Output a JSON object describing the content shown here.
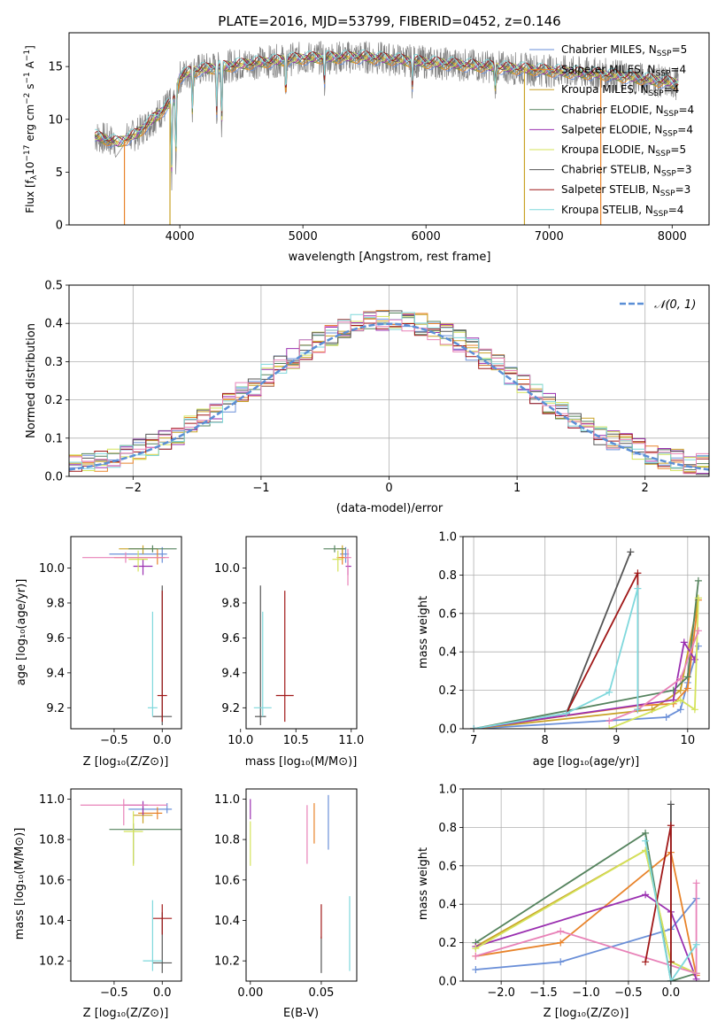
{
  "title": "PLATE=2016, MJD=53799, FIBERID=0452, z=0.146",
  "colors": {
    "chabrier_miles": "#6a8fd8",
    "salpeter_miles": "#e8832a",
    "kroupa_miles": "#c9a227",
    "chabrier_elodie": "#55835e",
    "salpeter_elodie": "#9a2fb0",
    "kroupa_elodie": "#d4e35a",
    "chabrier_stelib": "#555555",
    "salpeter_stelib": "#a01818",
    "kroupa_stelib": "#7fd8dc",
    "pink": "#e882b8",
    "normal_curve": "#5b8fd6"
  },
  "legend_spectrum": [
    {
      "label": "Chabrier MILES, N",
      "sub": "SSP",
      "suffix": "=5",
      "color": "#6a8fd8"
    },
    {
      "label": "Salpeter MILES, N",
      "sub": "SSP",
      "suffix": "=4",
      "color": "#e8832a"
    },
    {
      "label": "Kroupa MILES, N",
      "sub": "SSP",
      "suffix": "=4",
      "color": "#c9a227"
    },
    {
      "label": "Chabrier ELODIE, N",
      "sub": "SSP",
      "suffix": "=4",
      "color": "#55835e"
    },
    {
      "label": "Salpeter ELODIE, N",
      "sub": "SSP",
      "suffix": "=4",
      "color": "#9a2fb0"
    },
    {
      "label": "Kroupa ELODIE, N",
      "sub": "SSP",
      "suffix": "=5",
      "color": "#d4e35a"
    },
    {
      "label": "Chabrier STELIB, N",
      "sub": "SSP",
      "suffix": "=3",
      "color": "#555555"
    },
    {
      "label": "Salpeter STELIB, N",
      "sub": "SSP",
      "suffix": "=3",
      "color": "#a01818"
    },
    {
      "label": "Kroupa STELIB, N",
      "sub": "SSP",
      "suffix": "=4",
      "color": "#7fd8dc"
    }
  ],
  "chart_data": [
    {
      "id": "spectrum",
      "type": "line",
      "xlabel": "wavelength [Angstrom, rest frame]",
      "ylabel": "Flux [fλ10⁻¹⁷ erg cm⁻² s⁻¹ A⁻¹]",
      "xlim": [
        3100,
        8300
      ],
      "ylim": [
        0,
        18.2
      ],
      "xticks": [
        4000,
        5000,
        6000,
        7000,
        8000
      ],
      "yticks": [
        0,
        5,
        10,
        15
      ],
      "continuum": {
        "x": [
          3310,
          3500,
          3650,
          3800,
          3950,
          4000,
          4100,
          4300,
          4500,
          5000,
          5500,
          6000,
          6500,
          7000,
          7500,
          8050
        ],
        "y": [
          8.4,
          7.8,
          8.6,
          10.2,
          11.8,
          14.0,
          14.6,
          14.9,
          15.2,
          15.8,
          15.9,
          15.4,
          15.0,
          14.6,
          14.2,
          13.4
        ]
      },
      "absorption": [
        {
          "x": 3934,
          "depth": 7.0
        },
        {
          "x": 3968,
          "depth": 6.5
        },
        {
          "x": 4102,
          "depth": 4.0
        },
        {
          "x": 4300,
          "depth": 4.5
        },
        {
          "x": 4340,
          "depth": 6.0
        },
        {
          "x": 4861,
          "depth": 3.5
        },
        {
          "x": 5175,
          "depth": 2.5
        },
        {
          "x": 5890,
          "depth": 2.5
        },
        {
          "x": 6563,
          "depth": 2.0
        }
      ],
      "model_dropoffs": [
        {
          "x": 3550,
          "color": "#e8832a"
        },
        {
          "x": 3920,
          "color": "#c9a227"
        },
        {
          "x": 6800,
          "color": "#c9a227"
        },
        {
          "x": 7420,
          "color": "#e8832a"
        }
      ]
    },
    {
      "id": "residual-distribution",
      "type": "step",
      "xlabel": "(data-model)/error",
      "ylabel": "Normed distribution",
      "xlim": [
        -2.5,
        2.5
      ],
      "ylim": [
        0,
        0.5
      ],
      "xticks": [
        -2,
        -1,
        0,
        1,
        2
      ],
      "yticks": [
        0.0,
        0.1,
        0.2,
        0.3,
        0.4,
        0.5
      ],
      "bin_width": 0.1,
      "legend": "𝒩(0, 1)",
      "curve": "normal(0,1)"
    },
    {
      "id": "age-vs-Z",
      "type": "errorbar",
      "xlabel": "Z [log₁₀(Z/Z⊙)]",
      "ylabel": "age  [log₁₀(age/yr)]",
      "xlim": [
        -0.95,
        0.2
      ],
      "ylim": [
        9.08,
        10.18
      ],
      "xticks": [
        -0.5,
        0.0
      ],
      "yticks": [
        9.2,
        9.4,
        9.6,
        9.8,
        10.0
      ],
      "points": [
        {
          "x": 0.0,
          "y": 10.08,
          "xerr": [
            0.55,
            0.05
          ],
          "yerr": [
            0.05,
            0.04
          ],
          "color": "#6a8fd8"
        },
        {
          "x": -0.05,
          "y": 10.06,
          "xerr": [
            0.45,
            0.08
          ],
          "yerr": [
            0.04,
            0.05
          ],
          "color": "#e8832a"
        },
        {
          "x": -0.2,
          "y": 10.11,
          "xerr": [
            0.25,
            0.15
          ],
          "yerr": [
            0.03,
            0.02
          ],
          "color": "#c9a227"
        },
        {
          "x": -0.1,
          "y": 10.11,
          "xerr": [
            0.25,
            0.25
          ],
          "yerr": [
            0.02,
            0.02
          ],
          "color": "#55835e"
        },
        {
          "x": -0.2,
          "y": 10.01,
          "xerr": [
            0.1,
            0.1
          ],
          "yerr": [
            0.05,
            0.04
          ],
          "color": "#9a2fb0"
        },
        {
          "x": -0.25,
          "y": 10.05,
          "xerr": [
            0.1,
            0.1
          ],
          "yerr": [
            0.07,
            0.05
          ],
          "color": "#d4e35a"
        },
        {
          "x": -0.38,
          "y": 10.06,
          "xerr": [
            0.45,
            0.45
          ],
          "yerr": [
            0.03,
            0.03
          ],
          "color": "#e882b8"
        },
        {
          "x": 0.0,
          "y": 9.15,
          "xerr": [
            0.1,
            0.1
          ],
          "yerr": [
            0.05,
            0.75
          ],
          "color": "#555555"
        },
        {
          "x": 0.0,
          "y": 9.27,
          "xerr": [
            0.05,
            0.05
          ],
          "yerr": [
            0.15,
            0.6
          ],
          "color": "#a01818"
        },
        {
          "x": -0.1,
          "y": 9.2,
          "xerr": [
            0.05,
            0.05
          ],
          "yerr": [
            0.05,
            0.55
          ],
          "color": "#7fd8dc"
        }
      ]
    },
    {
      "id": "age-vs-mass",
      "type": "errorbar",
      "xlabel": "mass [log₁₀(M/M⊙)]",
      "ylabel": "",
      "xlim": [
        10.05,
        11.05
      ],
      "ylim": [
        9.08,
        10.18
      ],
      "xticks": [
        10.0,
        10.5,
        11.0
      ],
      "yticks": [
        9.2,
        9.4,
        9.6,
        9.8,
        10.0
      ],
      "points": [
        {
          "x": 10.95,
          "y": 10.08,
          "xerr": [
            0.05,
            0.03
          ],
          "yerr": [
            0.05,
            0.04
          ],
          "color": "#6a8fd8"
        },
        {
          "x": 10.92,
          "y": 10.06,
          "xerr": [
            0.05,
            0.05
          ],
          "yerr": [
            0.04,
            0.05
          ],
          "color": "#e8832a"
        },
        {
          "x": 10.92,
          "y": 10.11,
          "xerr": [
            0.05,
            0.03
          ],
          "yerr": [
            0.03,
            0.02
          ],
          "color": "#c9a227"
        },
        {
          "x": 10.85,
          "y": 10.11,
          "xerr": [
            0.1,
            0.1
          ],
          "yerr": [
            0.02,
            0.02
          ],
          "color": "#55835e"
        },
        {
          "x": 10.97,
          "y": 10.01,
          "xerr": [
            0.02,
            0.03
          ],
          "yerr": [
            0.05,
            0.04
          ],
          "color": "#9a2fb0"
        },
        {
          "x": 10.88,
          "y": 10.05,
          "xerr": [
            0.05,
            0.05
          ],
          "yerr": [
            0.07,
            0.05
          ],
          "color": "#d4e35a"
        },
        {
          "x": 10.97,
          "y": 10.06,
          "xerr": [
            0.03,
            0.03
          ],
          "yerr": [
            0.16,
            0.05
          ],
          "color": "#e882b8"
        },
        {
          "x": 10.18,
          "y": 9.15,
          "xerr": [
            0.05,
            0.05
          ],
          "yerr": [
            0.05,
            0.75
          ],
          "color": "#555555"
        },
        {
          "x": 10.4,
          "y": 9.27,
          "xerr": [
            0.08,
            0.08
          ],
          "yerr": [
            0.15,
            0.6
          ],
          "color": "#a01818"
        },
        {
          "x": 10.2,
          "y": 9.2,
          "xerr": [
            0.08,
            0.08
          ],
          "yerr": [
            0.05,
            0.55
          ],
          "color": "#7fd8dc"
        }
      ]
    },
    {
      "id": "weight-vs-age",
      "type": "line",
      "xlabel": "age  [log₁₀(age/yr)]",
      "ylabel": "mass weight",
      "xlim": [
        6.85,
        10.3
      ],
      "ylim": [
        0,
        1.0
      ],
      "xticks": [
        7,
        8,
        9,
        10
      ],
      "yticks": [
        0.0,
        0.2,
        0.4,
        0.6,
        0.8,
        1.0
      ],
      "series": [
        {
          "color": "#6a8fd8",
          "x": [
            7.0,
            9.7,
            9.9,
            10.0,
            10.15
          ],
          "y": [
            0.0,
            0.06,
            0.1,
            0.24,
            0.43
          ]
        },
        {
          "color": "#e8832a",
          "x": [
            7.0,
            9.3,
            9.8,
            10.0,
            10.15
          ],
          "y": [
            0.0,
            0.12,
            0.13,
            0.21,
            0.67
          ]
        },
        {
          "color": "#c9a227",
          "x": [
            7.0,
            9.5,
            9.9,
            10.15
          ],
          "y": [
            0.0,
            0.1,
            0.2,
            0.68
          ]
        },
        {
          "color": "#55835e",
          "x": [
            7.0,
            9.8,
            10.0,
            10.15
          ],
          "y": [
            0.0,
            0.2,
            0.27,
            0.77
          ]
        },
        {
          "color": "#9a2fb0",
          "x": [
            7.0,
            9.8,
            9.95,
            10.1
          ],
          "y": [
            0.0,
            0.15,
            0.45,
            0.36
          ]
        },
        {
          "color": "#d4e35a",
          "x": [
            8.9,
            9.9,
            10.1,
            10.15
          ],
          "y": [
            0.0,
            0.15,
            0.1,
            0.68
          ]
        },
        {
          "color": "#e882b8",
          "x": [
            8.9,
            9.3,
            9.9,
            10.15
          ],
          "y": [
            0.04,
            0.1,
            0.26,
            0.51
          ]
        },
        {
          "color": "#555555",
          "x": [
            8.3,
            9.2
          ],
          "y": [
            0.08,
            0.92
          ]
        },
        {
          "color": "#a01818",
          "x": [
            8.3,
            9.3,
            9.3
          ],
          "y": [
            0.08,
            0.81,
            0.1
          ]
        },
        {
          "color": "#7fd8dc",
          "x": [
            7.0,
            8.3,
            8.9,
            9.3,
            9.3
          ],
          "y": [
            0.0,
            0.08,
            0.19,
            0.73,
            0.1
          ]
        }
      ]
    },
    {
      "id": "mass-vs-Z",
      "type": "errorbar",
      "xlabel": "Z [log₁₀(Z/Z⊙)]",
      "ylabel": "mass [log₁₀(M/M⊙)]",
      "xlim": [
        -0.95,
        0.2
      ],
      "ylim": [
        10.1,
        11.05
      ],
      "xticks": [
        -0.5,
        0.0
      ],
      "yticks": [
        10.2,
        10.4,
        10.6,
        10.8,
        11.0
      ],
      "points": [
        {
          "x": 0.05,
          "y": 10.95,
          "xerr": [
            0.4,
            0.05
          ],
          "yerr": [
            0.02,
            0.03
          ],
          "color": "#6a8fd8"
        },
        {
          "x": -0.05,
          "y": 10.93,
          "xerr": [
            0.2,
            0.05
          ],
          "yerr": [
            0.03,
            0.03
          ],
          "color": "#e8832a"
        },
        {
          "x": -0.2,
          "y": 10.92,
          "xerr": [
            0.1,
            0.1
          ],
          "yerr": [
            0.04,
            0.04
          ],
          "color": "#c9a227"
        },
        {
          "x": -0.3,
          "y": 10.85,
          "xerr": [
            0.25,
            0.5
          ],
          "yerr": [
            0.17,
            0.03
          ],
          "color": "#55835e"
        },
        {
          "x": -0.2,
          "y": 10.97,
          "xerr": [
            0.2,
            0.05
          ],
          "yerr": [
            0.05,
            0.02
          ],
          "color": "#9a2fb0"
        },
        {
          "x": -0.3,
          "y": 10.84,
          "xerr": [
            0.1,
            0.1
          ],
          "yerr": [
            0.17,
            0.1
          ],
          "color": "#d4e35a"
        },
        {
          "x": -0.4,
          "y": 10.97,
          "xerr": [
            0.45,
            0.45
          ],
          "yerr": [
            0.1,
            0.03
          ],
          "color": "#e882b8"
        },
        {
          "x": 0.0,
          "y": 10.19,
          "xerr": [
            0.1,
            0.1
          ],
          "yerr": [
            0.05,
            0.25
          ],
          "color": "#555555"
        },
        {
          "x": 0.0,
          "y": 10.41,
          "xerr": [
            0.1,
            0.1
          ],
          "yerr": [
            0.08,
            0.07
          ],
          "color": "#a01818"
        },
        {
          "x": -0.1,
          "y": 10.2,
          "xerr": [
            0.1,
            0.1
          ],
          "yerr": [
            0.05,
            0.3
          ],
          "color": "#7fd8dc"
        }
      ]
    },
    {
      "id": "mass-vs-EBV",
      "type": "errorbar",
      "xlabel": "E(B-V)",
      "ylabel": "",
      "xlim": [
        -0.003,
        0.075
      ],
      "ylim": [
        10.1,
        11.05
      ],
      "xticks": [
        0.0,
        0.05
      ],
      "yticks": [
        10.2,
        10.4,
        10.6,
        10.8,
        11.0
      ],
      "points": [
        {
          "x": 0.055,
          "y": 10.95,
          "yerr": [
            0.2,
            0.07
          ],
          "color": "#6a8fd8"
        },
        {
          "x": 0.045,
          "y": 10.93,
          "yerr": [
            0.15,
            0.05
          ],
          "color": "#e8832a"
        },
        {
          "x": 0.0,
          "y": 10.95,
          "yerr": [
            0.05,
            0.05
          ],
          "color": "#9a2fb0"
        },
        {
          "x": 0.0,
          "y": 10.8,
          "yerr": [
            0.13,
            0.09
          ],
          "color": "#d4e35a"
        },
        {
          "x": 0.04,
          "y": 10.88,
          "yerr": [
            0.2,
            0.09
          ],
          "color": "#e882b8"
        },
        {
          "x": 0.05,
          "y": 10.19,
          "yerr": [
            0.05,
            0.13
          ],
          "color": "#555555"
        },
        {
          "x": 0.05,
          "y": 10.41,
          "yerr": [
            0.1,
            0.07
          ],
          "color": "#a01818"
        },
        {
          "x": 0.07,
          "y": 10.3,
          "yerr": [
            0.15,
            0.22
          ],
          "color": "#7fd8dc"
        }
      ]
    },
    {
      "id": "weight-vs-Z",
      "type": "line",
      "xlabel": "Z [log₁₀(Z/Z⊙)]",
      "ylabel": "mass weight",
      "xlim": [
        -2.45,
        0.45
      ],
      "ylim": [
        0,
        1.0
      ],
      "xticks": [
        -2.0,
        -1.5,
        -1.0,
        -0.5,
        0.0
      ],
      "yticks": [
        0.0,
        0.2,
        0.4,
        0.6,
        0.8,
        1.0
      ],
      "series": [
        {
          "color": "#6a8fd8",
          "x": [
            -2.3,
            -1.3,
            0.0,
            0.3
          ],
          "y": [
            0.06,
            0.1,
            0.27,
            0.43
          ]
        },
        {
          "color": "#e8832a",
          "x": [
            -2.3,
            -1.3,
            0.0,
            0.3
          ],
          "y": [
            0.13,
            0.2,
            0.67,
            0.03
          ]
        },
        {
          "color": "#c9a227",
          "x": [
            -2.3,
            -0.3,
            0.0,
            0.3
          ],
          "y": [
            0.18,
            0.68,
            0.1,
            0.04
          ]
        },
        {
          "color": "#55835e",
          "x": [
            -2.3,
            -0.3,
            0.0,
            0.3
          ],
          "y": [
            0.2,
            0.77,
            0.0,
            0.04
          ]
        },
        {
          "color": "#9a2fb0",
          "x": [
            -2.3,
            -0.3,
            0.0,
            0.3
          ],
          "y": [
            0.18,
            0.45,
            0.36,
            0.01
          ]
        },
        {
          "color": "#d4e35a",
          "x": [
            -2.3,
            -0.3,
            0.0,
            0.3
          ],
          "y": [
            0.17,
            0.68,
            0.1,
            0.04
          ]
        },
        {
          "color": "#e882b8",
          "x": [
            -2.3,
            -1.3,
            0.3,
            0.3
          ],
          "y": [
            0.13,
            0.26,
            0.04,
            0.51
          ]
        },
        {
          "color": "#555555",
          "x": [
            0.0,
            0.0
          ],
          "y": [
            0.0,
            0.92
          ]
        },
        {
          "color": "#a01818",
          "x": [
            -0.3,
            0.0,
            0.0
          ],
          "y": [
            0.1,
            0.81,
            0.1
          ]
        },
        {
          "color": "#7fd8dc",
          "x": [
            -0.3,
            0.0,
            0.3
          ],
          "y": [
            0.73,
            0.0,
            0.19
          ]
        }
      ]
    }
  ]
}
